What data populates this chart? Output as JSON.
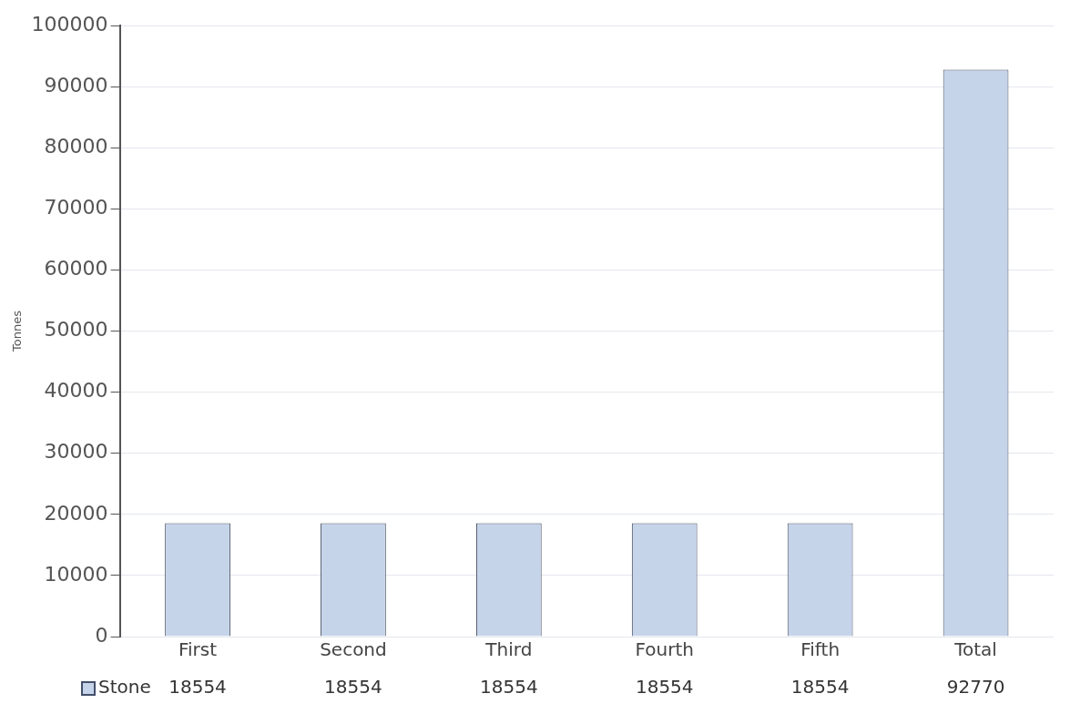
{
  "chart_data": {
    "type": "bar",
    "ylabel": "Tonnes",
    "categories": [
      "First",
      "Second",
      "Third",
      "Fourth",
      "Fifth",
      "Total"
    ],
    "series": [
      {
        "name": "Stone",
        "color": "#c6d4ea",
        "values": [
          18554,
          18554,
          18554,
          18554,
          18554,
          92770
        ]
      }
    ],
    "ylim": [
      0,
      100000
    ],
    "yticks": [
      0,
      10000,
      20000,
      30000,
      40000,
      50000,
      60000,
      70000,
      80000,
      90000,
      100000
    ],
    "grid": "y",
    "data_labels": true
  }
}
